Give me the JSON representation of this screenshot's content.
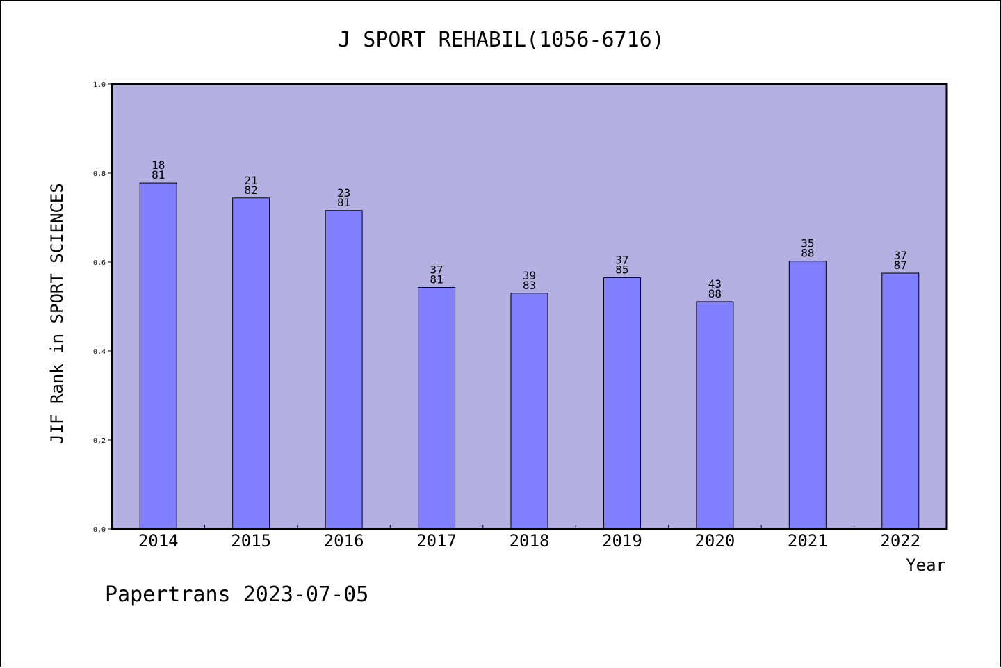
{
  "chart_data": {
    "type": "bar",
    "title": "J SPORT REHABIL(1056-6716)",
    "xlabel": "Year",
    "ylabel": "JIF Rank in SPORT SCIENCES",
    "footer": "Papertrans 2023-07-05",
    "ylim": [
      0.0,
      1.0
    ],
    "yticks": [
      "0.0",
      "0.2",
      "0.4",
      "0.6",
      "0.8",
      "1.0"
    ],
    "grid": false,
    "legend": "none",
    "categories": [
      "2014",
      "2015",
      "2016",
      "2017",
      "2018",
      "2019",
      "2020",
      "2021",
      "2022"
    ],
    "values": [
      0.778,
      0.744,
      0.716,
      0.543,
      0.53,
      0.565,
      0.511,
      0.602,
      0.575
    ],
    "ranks": [
      "18",
      "21",
      "23",
      "37",
      "39",
      "37",
      "43",
      "35",
      "37"
    ],
    "totals": [
      "81",
      "82",
      "81",
      "81",
      "83",
      "85",
      "88",
      "88",
      "87"
    ],
    "colors": {
      "plot_background": "#b5b0e2",
      "bar_fill": "#8080ff",
      "bar_stroke": "#000000"
    }
  }
}
